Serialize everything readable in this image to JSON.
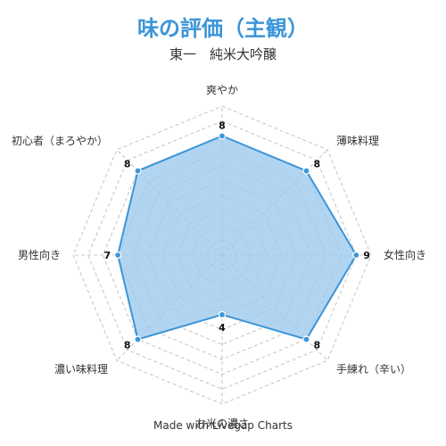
{
  "title": "味の評価（主観）",
  "subtitle": "東一　純米大吟醸",
  "footer": "Made with Livegap Charts",
  "colors": {
    "title": "#3b95d8",
    "series_stroke": "#3b95d8",
    "series_fill": "#9ecbee",
    "grid": "#b5b5b5"
  },
  "chart_data": {
    "type": "radar",
    "title": "味の評価（主観）",
    "subtitle": "東一　純米大吟醸",
    "categories": [
      "爽やか",
      "薄味料理",
      "女性向き",
      "手練れ（辛い）",
      "お米の濃さ",
      "濃い味料理",
      "男性向き",
      "初心者（まろやか）"
    ],
    "series": [
      {
        "values": [
          8,
          8,
          9,
          8,
          4,
          8,
          7,
          8
        ]
      }
    ],
    "range": [
      0,
      10
    ],
    "grid": true,
    "grid_levels": 10,
    "legend": "none"
  }
}
